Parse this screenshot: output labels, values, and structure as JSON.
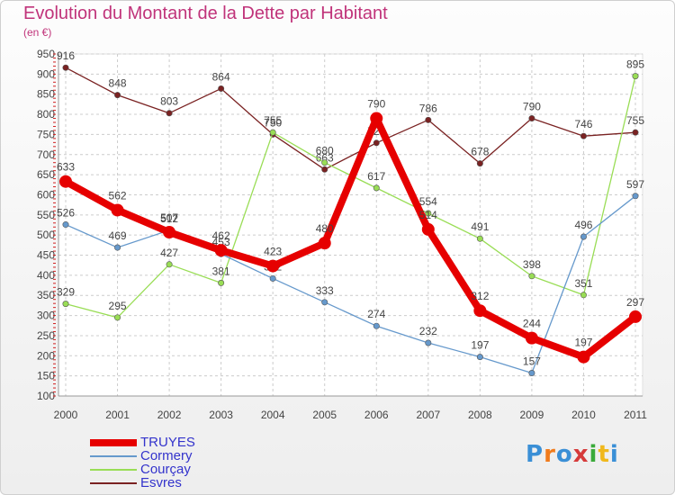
{
  "header": {
    "title": "Evolution du Montant de la Dette par Habitant",
    "subtitle": "(en €)"
  },
  "logo": {
    "letters": [
      "P",
      "r",
      "o",
      "x",
      "i",
      "t",
      "i"
    ],
    "colors": [
      "#3a8fd6",
      "#f07b1c",
      "#3a8fd6",
      "#d63a3a",
      "#3aaa3a",
      "#f0b81c",
      "#3a8fd6"
    ]
  },
  "chart_data": {
    "type": "line",
    "title": "Evolution du Montant de la Dette par Habitant",
    "subtitle": "(en €)",
    "x": [
      "2000",
      "2001",
      "2002",
      "2003",
      "2004",
      "2005",
      "2006",
      "2007",
      "2008",
      "2009",
      "2010",
      "2011"
    ],
    "ylim": [
      100,
      950
    ],
    "yticks": [
      100,
      150,
      200,
      250,
      300,
      350,
      400,
      450,
      500,
      550,
      600,
      650,
      700,
      750,
      800,
      850,
      900,
      950
    ],
    "grid": true,
    "legend_position": "bottom-left",
    "series": [
      {
        "name": "TRUYES",
        "color": "#e60000",
        "values": [
          633,
          562,
          507,
          462,
          423,
          480,
          790,
          514,
          312,
          244,
          197,
          297
        ]
      },
      {
        "name": "Cormery",
        "color": "#6699cc",
        "values": [
          526,
          469,
          512,
          453,
          392,
          333,
          274,
          232,
          197,
          157,
          496,
          597
        ]
      },
      {
        "name": "Courçay",
        "color": "#99dd55",
        "values": [
          329,
          295,
          427,
          381,
          755,
          680,
          617,
          554,
          491,
          398,
          351,
          895
        ]
      },
      {
        "name": "Esvres",
        "color": "#7a2222",
        "values": [
          916,
          848,
          803,
          864,
          750,
          663,
          729,
          786,
          678,
          790,
          746,
          755
        ]
      }
    ]
  }
}
